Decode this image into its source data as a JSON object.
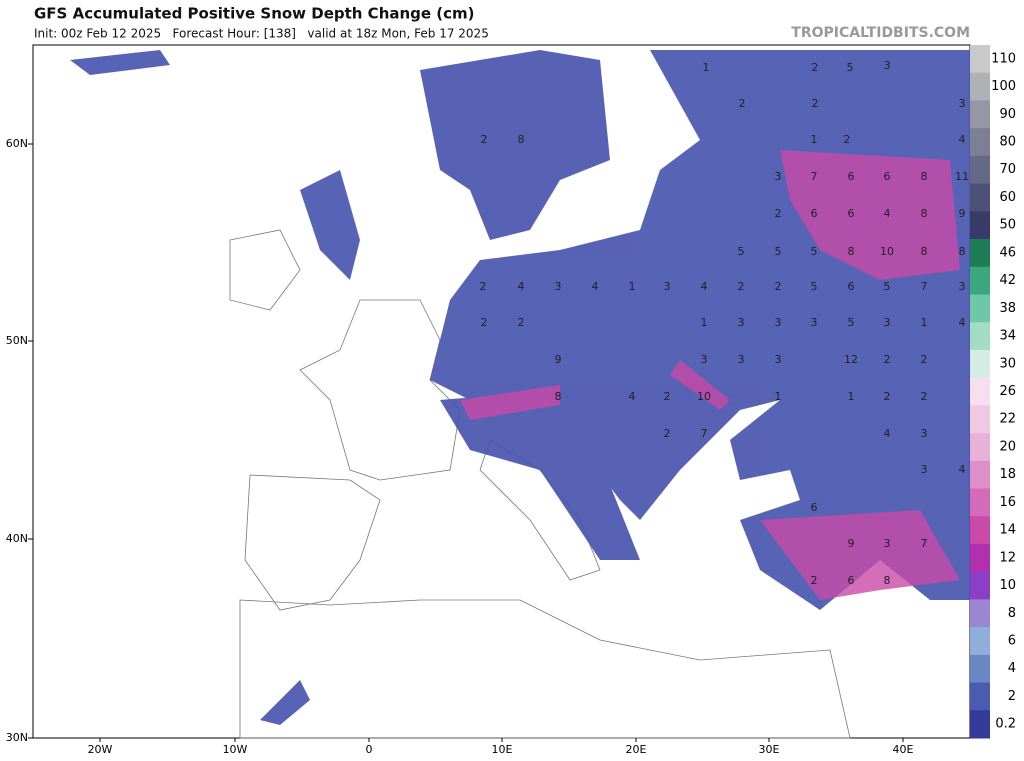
{
  "header": {
    "title": "GFS Accumulated Positive Snow Depth Change (cm)",
    "subtitle": "Init: 00z Feb 12 2025   Forecast Hour: [138]   valid at 18z Mon, Feb 17 2025",
    "brand": "TROPICALTIDBITS.COM"
  },
  "map": {
    "lat_labels": [
      "60N",
      "50N",
      "40N",
      "30N"
    ],
    "lon_labels": [
      "20W",
      "10W",
      "0",
      "10E",
      "20E",
      "30E",
      "40E"
    ],
    "snow_labels": [
      "1",
      "2",
      "5",
      "3",
      "3",
      "2",
      "2",
      "1",
      "2",
      "4",
      "3",
      "7",
      "6",
      "6",
      "8",
      "11",
      "2",
      "6",
      "6",
      "4",
      "8",
      "9",
      "5",
      "5",
      "5",
      "8",
      "10",
      "8",
      "8",
      "2",
      "4",
      "3",
      "4",
      "1",
      "3",
      "4",
      "2",
      "2",
      "5",
      "6",
      "5",
      "7",
      "3",
      "2",
      "2",
      "1",
      "3",
      "3",
      "3",
      "5",
      "3",
      "1",
      "4",
      "9",
      "3",
      "3",
      "3",
      "12",
      "2",
      "2",
      "8",
      "4",
      "2",
      "10",
      "1",
      "1",
      "2",
      "2",
      "4",
      "3",
      "2",
      "7",
      "3",
      "4",
      "6",
      "9",
      "3",
      "7",
      "2",
      "6",
      "8",
      "2",
      "8"
    ]
  },
  "colorbar": {
    "labels": [
      "110",
      "100",
      "90",
      "80",
      "70",
      "60",
      "50",
      "46",
      "42",
      "38",
      "34",
      "30",
      "26",
      "22",
      "20",
      "18",
      "16",
      "14",
      "12",
      "10",
      "8",
      "6",
      "4",
      "2",
      "0.2"
    ],
    "colors": [
      "#c9c9c9",
      "#b0b1b6",
      "#9697a5",
      "#7d7f95",
      "#656886",
      "#4e5177",
      "#383b66",
      "#1e7d57",
      "#3aa77e",
      "#6ec7a6",
      "#a3dcc5",
      "#d4ede4",
      "#f5dff0",
      "#f0c8e2",
      "#e8b1d8",
      "#de8ec8",
      "#d46bb8",
      "#c94aa8",
      "#b030b0",
      "#8a3fc4",
      "#9a86d2",
      "#8faed8",
      "#6a87c6",
      "#4b5bb0",
      "#333a98"
    ]
  }
}
